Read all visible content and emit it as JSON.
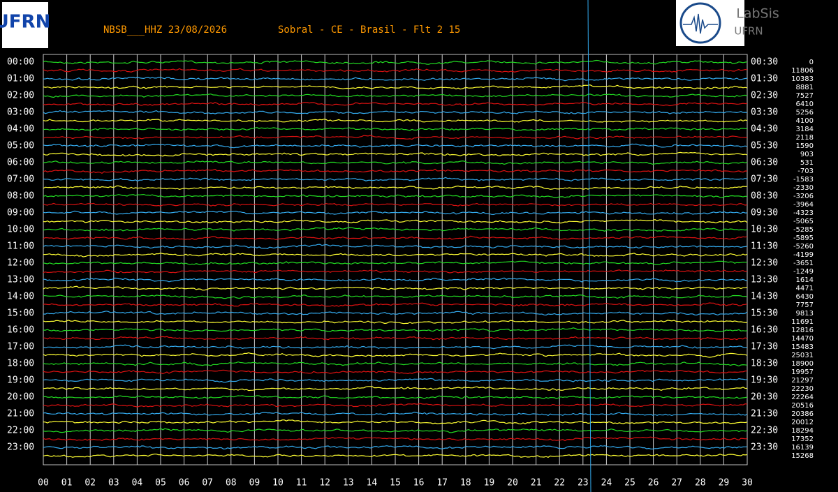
{
  "logo_left": "UFRN",
  "logo_right": {
    "name": "LabSis",
    "org": "UFRN"
  },
  "chart_data": {
    "type": "helicorder",
    "title": "NBSB___HHZ 23/08/2026",
    "subtitle": "Sobral - CE - Brasil - Flt 2 15",
    "colors": [
      "#22dd22",
      "#dd1111",
      "#33aaee",
      "#ffff33"
    ],
    "grid": true,
    "xlim": [
      0,
      30
    ],
    "xticks": [
      {
        "value": 0,
        "label": "00"
      },
      {
        "value": 1,
        "label": "01"
      },
      {
        "value": 2,
        "label": "02"
      },
      {
        "value": 3,
        "label": "03"
      },
      {
        "value": 4,
        "label": "04"
      },
      {
        "value": 5,
        "label": "05"
      },
      {
        "value": 6,
        "label": "06"
      },
      {
        "value": 7,
        "label": "07"
      },
      {
        "value": 8,
        "label": "08"
      },
      {
        "value": 9,
        "label": "09"
      },
      10,
      11,
      12,
      13,
      14,
      15,
      16,
      17,
      18,
      19,
      20,
      21,
      22,
      23,
      24,
      25,
      26,
      27,
      28,
      29,
      30
    ],
    "y_labels": [
      "00:00",
      "01:00",
      "02:00",
      "03:00",
      "04:00",
      "05:00",
      "06:00",
      "07:00",
      "08:00",
      "09:00",
      "10:00",
      "11:00",
      "12:00",
      "13:00",
      "14:00",
      "15:00",
      "16:00",
      "17:00",
      "18:00",
      "19:00",
      "20:00",
      "21:00",
      "22:00",
      "23:00"
    ],
    "y2_labels": [
      "00:30",
      "01:30",
      "02:30",
      "03:30",
      "04:30",
      "05:30",
      "06:30",
      "07:30",
      "08:30",
      "09:30",
      "10:30",
      "11:30",
      "12:30",
      "13:30",
      "14:30",
      "15:30",
      "16:30",
      "17:30",
      "18:30",
      "19:30",
      "20:30",
      "21:30",
      "22:30",
      "23:30"
    ],
    "offsets": [
      0,
      11806,
      10383,
      8881,
      7527,
      6410,
      5256,
      4100,
      3184,
      2118,
      1590,
      903,
      531,
      -703,
      -1583,
      -2330,
      -3206,
      -3964,
      -4323,
      -5065,
      -5285,
      -5895,
      -5260,
      -4199,
      -3651,
      -1249,
      1614,
      4471,
      6430,
      7757,
      9813,
      11691,
      12816,
      14470,
      15483,
      25031,
      18900,
      19957,
      21297,
      22230,
      22264,
      20516,
      20386,
      20012,
      18294,
      17352,
      16139,
      15268
    ]
  }
}
